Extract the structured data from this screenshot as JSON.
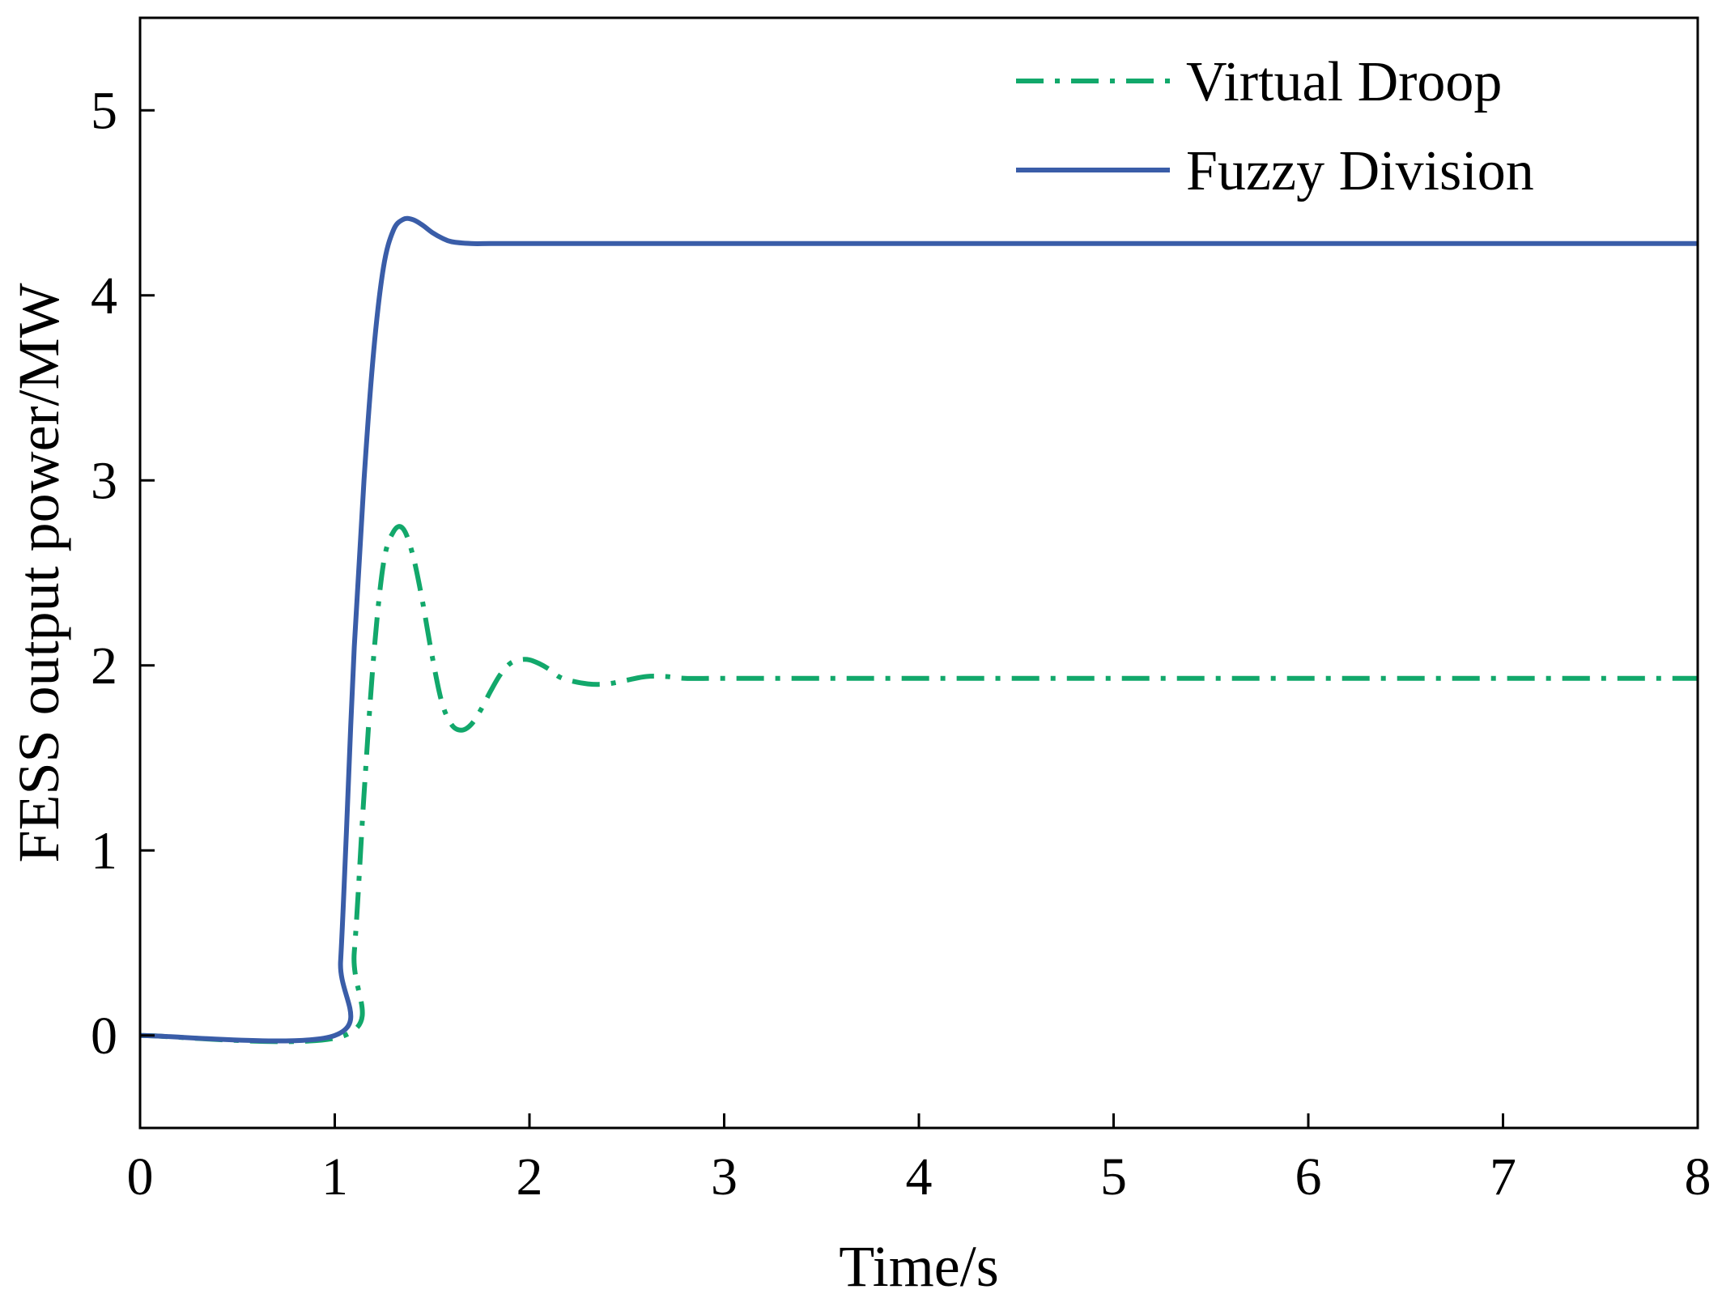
{
  "chart_data": {
    "type": "line",
    "title": "",
    "xlabel": "Time/s",
    "ylabel": "FESS output power/MW",
    "xlim": [
      0,
      8
    ],
    "ylim": [
      -0.5,
      5.5
    ],
    "xticks": [
      0,
      1,
      2,
      3,
      4,
      5,
      6,
      7,
      8
    ],
    "yticks": [
      0,
      1,
      2,
      3,
      4,
      5
    ],
    "grid": false,
    "legend_position": "top-right",
    "series": [
      {
        "name": "Virtual Droop",
        "color": "#12a86b",
        "style": "dash-dot",
        "x": [
          0,
          1.05,
          1.1,
          1.15,
          1.2,
          1.25,
          1.3,
          1.35,
          1.4,
          1.45,
          1.5,
          1.55,
          1.6,
          1.65,
          1.7,
          1.75,
          1.8,
          1.85,
          1.9,
          1.95,
          2.0,
          2.05,
          2.1,
          2.15,
          2.2,
          2.3,
          2.4,
          2.5,
          2.6,
          2.7,
          2.8,
          3.0,
          3.5,
          4.0,
          5.0,
          6.0,
          7.0,
          8.0
        ],
        "y": [
          0,
          0,
          0.45,
          1.3,
          2.05,
          2.55,
          2.72,
          2.74,
          2.6,
          2.35,
          2.05,
          1.8,
          1.68,
          1.65,
          1.68,
          1.76,
          1.86,
          1.95,
          2.01,
          2.03,
          2.03,
          2.01,
          1.98,
          1.94,
          1.92,
          1.9,
          1.9,
          1.92,
          1.94,
          1.94,
          1.93,
          1.93,
          1.93,
          1.93,
          1.93,
          1.93,
          1.93,
          1.93
        ]
      },
      {
        "name": "Fuzzy Division",
        "color": "#3a5da8",
        "style": "solid",
        "x": [
          0,
          1.0,
          1.03,
          1.06,
          1.1,
          1.15,
          1.2,
          1.25,
          1.3,
          1.35,
          1.4,
          1.45,
          1.5,
          1.55,
          1.6,
          1.7,
          1.8,
          2.0,
          3.0,
          4.0,
          5.0,
          6.0,
          7.0,
          8.0
        ],
        "y": [
          0,
          0,
          0.4,
          1.1,
          2.1,
          3.0,
          3.7,
          4.15,
          4.35,
          4.41,
          4.41,
          4.38,
          4.34,
          4.31,
          4.29,
          4.28,
          4.28,
          4.28,
          4.28,
          4.28,
          4.28,
          4.28,
          4.28,
          4.28
        ]
      }
    ]
  }
}
